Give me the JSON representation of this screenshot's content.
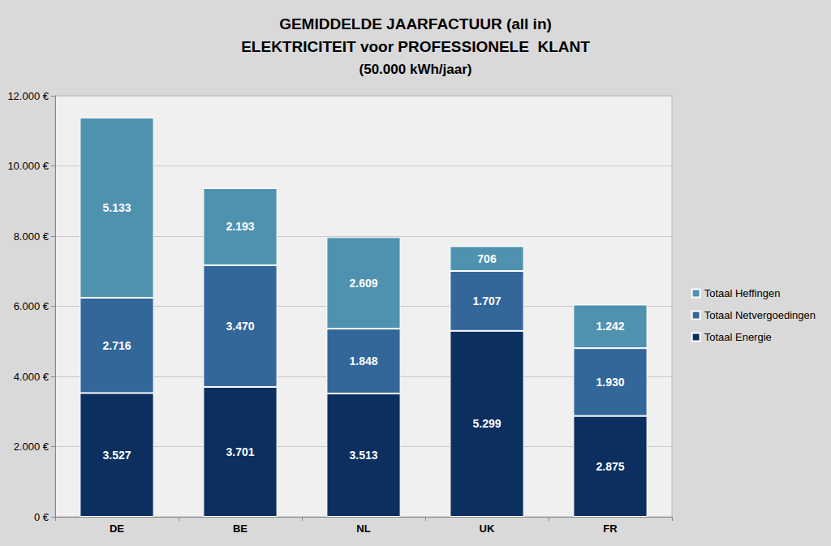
{
  "chart_data": {
    "type": "bar",
    "title": "GEMIDDELDE JAARFACTUUR (all in)\nELEKTRICITEIT voor PROFESSIONELE  KLANT",
    "subtitle": "(50.000 kWh/jaar)",
    "categories": [
      "DE",
      "BE",
      "NL",
      "UK",
      "FR"
    ],
    "series": [
      {
        "name": "Totaal Energie",
        "color": "#0b2f5f",
        "values": [
          3527,
          3701,
          3513,
          5299,
          2875
        ],
        "value_labels": [
          "3.527",
          "3.701",
          "3.513",
          "5.299",
          "2.875"
        ]
      },
      {
        "name": "Totaal Netvergoedingen",
        "color": "#336699",
        "values": [
          2716,
          3470,
          1848,
          1707,
          1930
        ],
        "value_labels": [
          "2.716",
          "3.470",
          "1.848",
          "1.707",
          "1.930"
        ]
      },
      {
        "name": "Totaal Heffingen",
        "color": "#4f92b0",
        "values": [
          5133,
          2193,
          2609,
          706,
          1242
        ],
        "value_labels": [
          "5.133",
          "2.193",
          "2.609",
          "706",
          "1.242"
        ]
      }
    ],
    "ylim": [
      0,
      12000
    ],
    "yticks": [
      {
        "value": 0,
        "label": "0 €"
      },
      {
        "value": 2000,
        "label": "2.000 €"
      },
      {
        "value": 4000,
        "label": "4.000 €"
      },
      {
        "value": 6000,
        "label": "6.000 €"
      },
      {
        "value": 8000,
        "label": "8.000 €"
      },
      {
        "value": 10000,
        "label": "10.000 €"
      },
      {
        "value": 12000,
        "label": "12.000 €"
      }
    ],
    "stacked": true,
    "data_labels": true,
    "legend": "right",
    "grid": true
  }
}
